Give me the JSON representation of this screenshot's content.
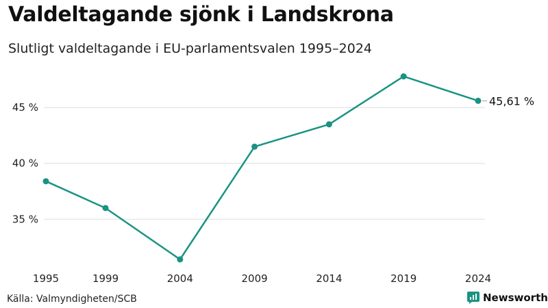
{
  "header": {
    "title": "Valdeltagande sjönk i Landskrona",
    "subtitle": "Slutligt valdeltagande i EU-parlamentsvalen 1995–2024"
  },
  "footer": {
    "source": "Källa: Valmyndigheten/SCB",
    "brand": "Newsworthy"
  },
  "colors": {
    "line": "#1a9383",
    "grid": "#dddddd",
    "brand": "#1a9383"
  },
  "chart_data": {
    "type": "line",
    "title": "Valdeltagande sjönk i Landskrona",
    "subtitle": "Slutligt valdeltagande i EU-parlamentsvalen 1995–2024",
    "x": [
      "1995",
      "1999",
      "2004",
      "2009",
      "2014",
      "2019",
      "2024"
    ],
    "series": [
      {
        "name": "Valdeltagande",
        "values": [
          38.4,
          36.0,
          31.4,
          41.5,
          43.5,
          47.8,
          45.61
        ]
      }
    ],
    "y_ticks": [
      35,
      40,
      45
    ],
    "y_tick_labels": [
      "35 %",
      "40 %",
      "45 %"
    ],
    "ylim": [
      30.6,
      49.0
    ],
    "end_label": "45,61 %",
    "xlabel": "",
    "ylabel": "",
    "grid": true
  }
}
